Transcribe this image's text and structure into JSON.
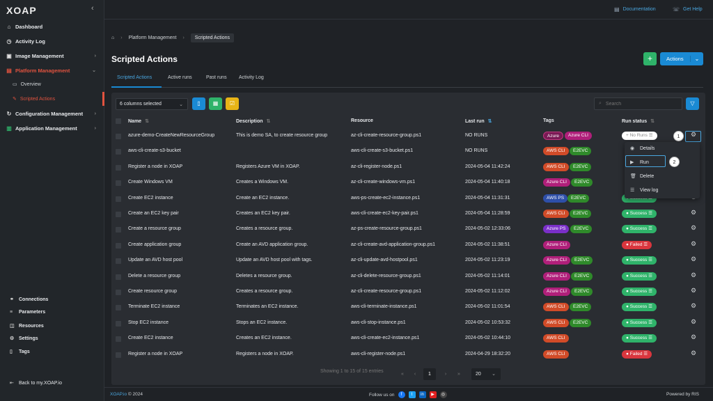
{
  "app": {
    "logo_text": "XOAP",
    "collapse_icon": "chevron-left-icon"
  },
  "sidebar": {
    "items": [
      {
        "label": "Dashboard",
        "icon": "home-icon"
      },
      {
        "label": "Activity Log",
        "icon": "clock-icon"
      },
      {
        "label": "Image Management",
        "icon": "image-icon"
      },
      {
        "label": "Platform Management",
        "icon": "platform-icon"
      },
      {
        "label": "Configuration Management",
        "icon": "refresh-icon"
      },
      {
        "label": "Application Management",
        "icon": "chart-icon"
      }
    ],
    "sub_items": [
      {
        "label": "Overview",
        "icon": "folder-icon"
      },
      {
        "label": "Scripted Actions",
        "icon": "code-icon"
      }
    ],
    "bottom": [
      {
        "label": "Connections",
        "icon": "link-icon"
      },
      {
        "label": "Parameters",
        "icon": "sliders-icon"
      },
      {
        "label": "Resources",
        "icon": "stack-icon"
      },
      {
        "label": "Settings",
        "icon": "gear-icon"
      },
      {
        "label": "Tags",
        "icon": "bookmark-icon"
      }
    ],
    "back_label": "Back to my.XOAP.io"
  },
  "topbar": {
    "documentation": "Documentation",
    "help": "Get Help"
  },
  "breadcrumb": {
    "level1": "Platform Management",
    "level2": "Scripted Actions"
  },
  "page": {
    "title": "Scripted Actions",
    "plus_label": "+",
    "actions_label": "Actions"
  },
  "tabs": [
    "Scripted Actions",
    "Active runs",
    "Past runs",
    "Activity Log"
  ],
  "toolbar": {
    "columns_selected": "6 columns selected",
    "search_placeholder": "Search"
  },
  "table": {
    "headers": {
      "name": "Name",
      "description": "Description",
      "resource": "Resource",
      "last_run": "Last run",
      "tags": "Tags",
      "run_status": "Run status"
    },
    "rows": [
      {
        "name": "azure-demo-CreateNewResourceGroup",
        "description": "This is demo SA, to create resource group",
        "resource": "az-cli-create-resource-group.ps1",
        "last_run": "NO RUNS",
        "tags": [
          "Azure",
          "Azure CLI"
        ],
        "status": "No Runs"
      },
      {
        "name": "aws-cli-create-s3-bucket",
        "description": "",
        "resource": "aws-cli-create-s3-bucket.ps1",
        "last_run": "NO RUNS",
        "tags": [
          "AWS CLI",
          "E2EVC"
        ],
        "status": ""
      },
      {
        "name": "Register a node in XOAP",
        "description": "Registers Azure VM in XOAP.",
        "resource": "az-cli-register-node.ps1",
        "last_run": "2024-05-04 11:42:24",
        "tags": [
          "AWS CLI",
          "E2EVC"
        ],
        "status": ""
      },
      {
        "name": "Create Windows VM",
        "description": "Creates a Windows VM.",
        "resource": "az-cli-create-windows-vm.ps1",
        "last_run": "2024-05-04 11:40:18",
        "tags": [
          "Azure CLI",
          "E2EVC"
        ],
        "status": ""
      },
      {
        "name": "Create EC2 instance",
        "description": "Create an EC2 instance.",
        "resource": "aws-ps-create-ec2-instance.ps1",
        "last_run": "2024-05-04 11:31:31",
        "tags": [
          "AWS PS",
          "E2EVC"
        ],
        "status": "Success"
      },
      {
        "name": "Create an EC2 key pair",
        "description": "Creates an EC2 key pair.",
        "resource": "aws-cli-create-ec2-key-pair.ps1",
        "last_run": "2024-05-04 11:28:59",
        "tags": [
          "AWS CLI",
          "E2EVC"
        ],
        "status": "Success"
      },
      {
        "name": "Create a resource group",
        "description": "Creates a resource group.",
        "resource": "az-ps-create-resource-group.ps1",
        "last_run": "2024-05-02 12:33:06",
        "tags": [
          "Azure PS",
          "E2EVC"
        ],
        "status": "Success"
      },
      {
        "name": "Create application group",
        "description": "Create an AVD application group.",
        "resource": "az-cli-create-avd-application-group.ps1",
        "last_run": "2024-05-02 11:38:51",
        "tags": [
          "Azure CLI"
        ],
        "status": "Failed"
      },
      {
        "name": "Update an AVD host pool",
        "description": "Update an AVD host pool with tags.",
        "resource": "az-cli-update-avd-hostpool.ps1",
        "last_run": "2024-05-02 11:23:19",
        "tags": [
          "Azure CLI",
          "E2EVC"
        ],
        "status": "Success"
      },
      {
        "name": "Delete a resource group",
        "description": "Deletes a resource group.",
        "resource": "az-cli-delete-resource-group.ps1",
        "last_run": "2024-05-02 11:14:01",
        "tags": [
          "Azure CLI",
          "E2EVC"
        ],
        "status": "Success"
      },
      {
        "name": "Create resource group",
        "description": "Creates a resource group.",
        "resource": "az-cli-create-resource-group.ps1",
        "last_run": "2024-05-02 11:12:02",
        "tags": [
          "Azure CLI",
          "E2EVC"
        ],
        "status": "Success"
      },
      {
        "name": "Terminate EC2 instance",
        "description": "Terminates an EC2 instance.",
        "resource": "aws-cli-terminate-instance.ps1",
        "last_run": "2024-05-02 11:01:54",
        "tags": [
          "AWS CLI",
          "E2EVC"
        ],
        "status": "Success"
      },
      {
        "name": "Stop EC2 instance",
        "description": "Stops an EC2 instance.",
        "resource": "aws-cli-stop-instance.ps1",
        "last_run": "2024-05-02 10:53:32",
        "tags": [
          "AWS CLI",
          "E2EVC"
        ],
        "status": "Success"
      },
      {
        "name": "Create EC2 instance",
        "description": "Creates an EC2 instance.",
        "resource": "aws-cli-create-ec2-instance.ps1",
        "last_run": "2024-05-02 10:44:10",
        "tags": [
          "AWS CLI"
        ],
        "status": "Success"
      },
      {
        "name": "Register a node in XOAP",
        "description": "Registers a node in XOAP.",
        "resource": "aws-cli-register-node.ps1",
        "last_run": "2024-04-29 18:32:20",
        "tags": [
          "AWS CLI"
        ],
        "status": "Failed"
      }
    ]
  },
  "context_menu": {
    "items": [
      "Details",
      "Run",
      "Delete",
      "View log"
    ],
    "step1": "1",
    "step2": "2"
  },
  "pagination": {
    "summary": "Showing 1 to 15 of 15 entries",
    "current_page": "1",
    "per_page": "20"
  },
  "footer": {
    "brand": "XOAP.io",
    "copyright": "© 2024",
    "follow": "Follow us on",
    "powered": "Powered by RIS"
  },
  "colors": {
    "accent": "#1a8ad4",
    "active_nav": "#e2533f",
    "success": "#2fb36a",
    "failed": "#d9363e"
  }
}
